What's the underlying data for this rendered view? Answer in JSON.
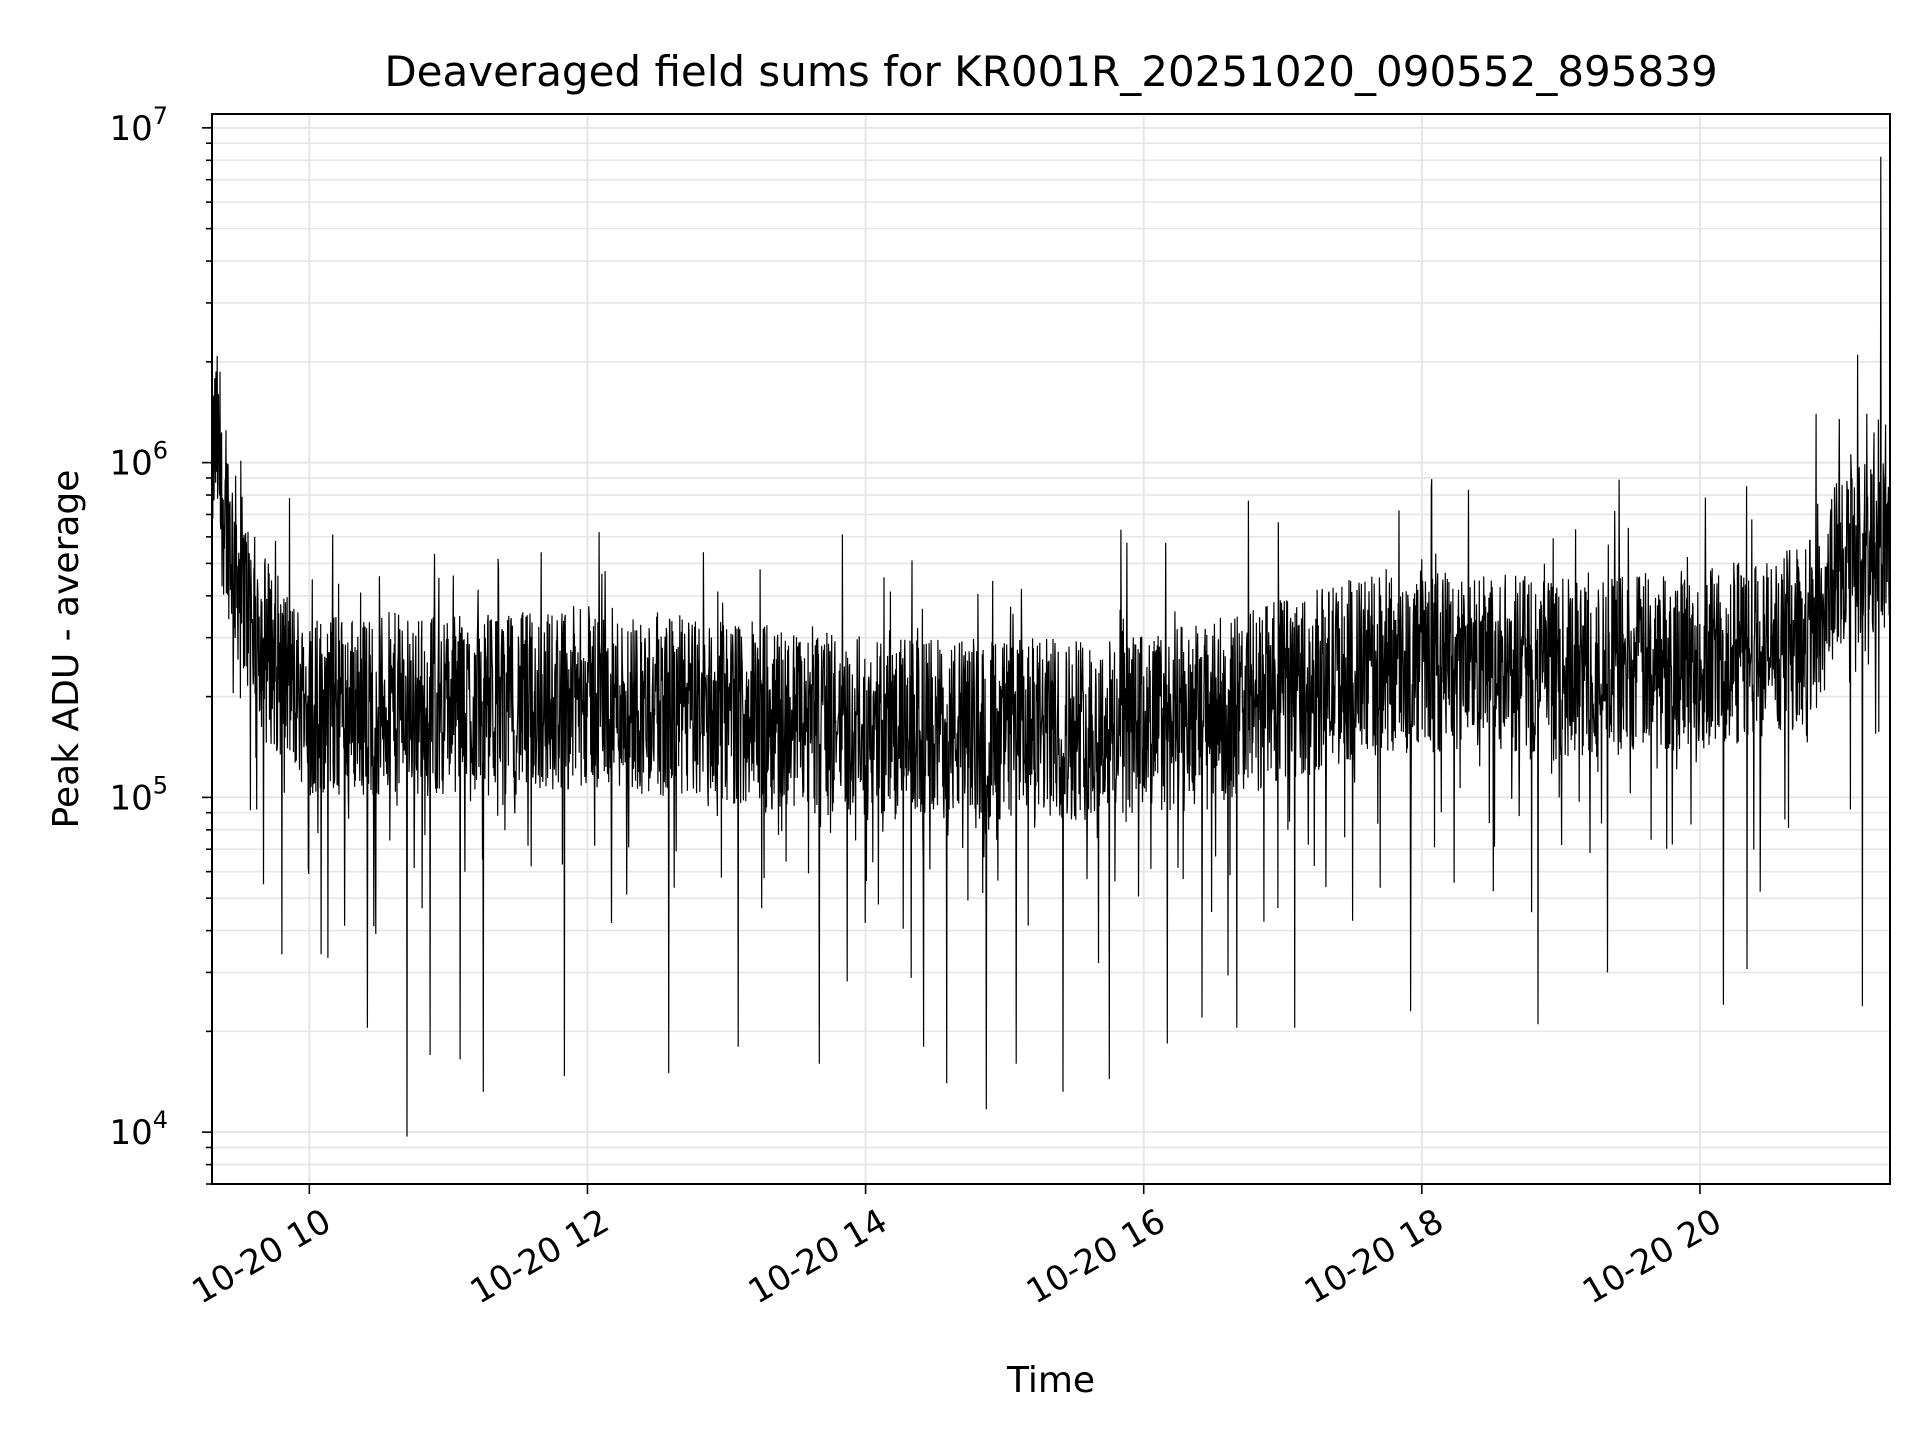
{
  "chart_data": {
    "type": "line",
    "title": "Deaveraged field sums for KR001R_20251020_090552_895839",
    "xlabel": "Time",
    "ylabel": "Peak ADU - average",
    "yscale": "log",
    "grid": true,
    "xlim": [
      "2025-10-20 09:18",
      "2025-10-20 21:22"
    ],
    "ylim": [
      7000,
      11000000
    ],
    "x_ticks": [
      {
        "at": "2025-10-20 10:00",
        "label": "10-20 10"
      },
      {
        "at": "2025-10-20 12:00",
        "label": "10-20 12"
      },
      {
        "at": "2025-10-20 14:00",
        "label": "10-20 14"
      },
      {
        "at": "2025-10-20 16:00",
        "label": "10-20 16"
      },
      {
        "at": "2025-10-20 18:00",
        "label": "10-20 18"
      },
      {
        "at": "2025-10-20 20:00",
        "label": "10-20 20"
      }
    ],
    "y_ticks": [
      {
        "value": 10000,
        "base": "10",
        "exp": "4"
      },
      {
        "value": 100000,
        "base": "10",
        "exp": "5"
      },
      {
        "value": 1000000,
        "base": "10",
        "exp": "6"
      },
      {
        "value": 10000000,
        "base": "10",
        "exp": "7"
      }
    ],
    "line_color": "#000000",
    "series": [
      {
        "points": [
          [
            "2025-10-20 09:18",
            1000000
          ],
          [
            "2025-10-20 09:20",
            1200000
          ],
          [
            "2025-10-20 09:22",
            800000
          ],
          [
            "2025-10-20 09:25",
            650000
          ],
          [
            "2025-10-20 09:28",
            500000
          ],
          [
            "2025-10-20 09:32",
            400000
          ],
          [
            "2025-10-20 09:36",
            330000
          ],
          [
            "2025-10-20 09:42",
            280000
          ],
          [
            "2025-10-20 09:50",
            230000
          ],
          [
            "2025-10-20 10:00",
            190000
          ],
          [
            "2025-10-20 10:30",
            190000
          ],
          [
            "2025-10-20 11:00",
            190000
          ],
          [
            "2025-10-20 11:30",
            190000
          ],
          [
            "2025-10-20 12:00",
            200000
          ],
          [
            "2025-10-20 12:30",
            190000
          ],
          [
            "2025-10-20 13:00",
            180000
          ],
          [
            "2025-10-20 13:30",
            170000
          ],
          [
            "2025-10-20 14:00",
            160000
          ],
          [
            "2025-10-20 14:30",
            160000
          ],
          [
            "2025-10-20 15:00",
            160000
          ],
          [
            "2025-10-20 15:30",
            160000
          ],
          [
            "2025-10-20 16:00",
            165000
          ],
          [
            "2025-10-20 16:30",
            180000
          ],
          [
            "2025-10-20 17:00",
            210000
          ],
          [
            "2025-10-20 17:30",
            240000
          ],
          [
            "2025-10-20 18:00",
            260000
          ],
          [
            "2025-10-20 18:30",
            250000
          ],
          [
            "2025-10-20 19:00",
            240000
          ],
          [
            "2025-10-20 19:30",
            250000
          ],
          [
            "2025-10-20 20:00",
            260000
          ],
          [
            "2025-10-20 20:30",
            280000
          ],
          [
            "2025-10-20 20:50",
            320000
          ],
          [
            "2025-10-20 21:00",
            500000
          ],
          [
            "2025-10-20 21:10",
            550000
          ],
          [
            "2025-10-20 21:22",
            620000
          ]
        ],
        "spikes_high": [
          [
            "2025-10-20 09:19",
            1300000
          ],
          [
            "2025-10-20 09:24",
            1250000
          ],
          [
            "2025-10-20 10:10",
            610000
          ],
          [
            "2025-10-20 11:40",
            540000
          ],
          [
            "2025-10-20 12:05",
            620000
          ],
          [
            "2025-10-20 12:50",
            540000
          ],
          [
            "2025-10-20 13:50",
            610000
          ],
          [
            "2025-10-20 14:20",
            510000
          ],
          [
            "2025-10-20 15:50",
            630000
          ],
          [
            "2025-10-20 16:45",
            770000
          ],
          [
            "2025-10-20 17:50",
            720000
          ],
          [
            "2025-10-20 18:20",
            830000
          ],
          [
            "2025-10-20 19:25",
            890000
          ],
          [
            "2025-10-20 20:20",
            850000
          ],
          [
            "2025-10-20 20:50",
            1400000
          ],
          [
            "2025-10-20 21:00",
            1350000
          ],
          [
            "2025-10-20 21:08",
            2100000
          ],
          [
            "2025-10-20 21:12",
            1400000
          ],
          [
            "2025-10-20 21:18",
            8200000
          ],
          [
            "2025-10-20 21:20",
            1300000
          ]
        ],
        "spikes_low": [
          [
            "2025-10-20 09:48",
            34000
          ],
          [
            "2025-10-20 10:05",
            34000
          ],
          [
            "2025-10-20 10:25",
            20500
          ],
          [
            "2025-10-20 10:42",
            9700
          ],
          [
            "2025-10-20 10:52",
            17000
          ],
          [
            "2025-10-20 11:05",
            16500
          ],
          [
            "2025-10-20 11:15",
            13200
          ],
          [
            "2025-10-20 11:50",
            14700
          ],
          [
            "2025-10-20 12:35",
            15000
          ],
          [
            "2025-10-20 13:05",
            18000
          ],
          [
            "2025-10-20 13:40",
            16000
          ],
          [
            "2025-10-20 14:25",
            18000
          ],
          [
            "2025-10-20 14:35",
            14000
          ],
          [
            "2025-10-20 14:52",
            11700
          ],
          [
            "2025-10-20 15:05",
            16000
          ],
          [
            "2025-10-20 15:25",
            13200
          ],
          [
            "2025-10-20 15:45",
            14400
          ],
          [
            "2025-10-20 16:10",
            18400
          ],
          [
            "2025-10-20 16:25",
            22000
          ],
          [
            "2025-10-20 16:40",
            20500
          ],
          [
            "2025-10-20 17:05",
            20500
          ],
          [
            "2025-10-20 17:55",
            23000
          ],
          [
            "2025-10-20 18:50",
            21000
          ],
          [
            "2025-10-20 19:20",
            30000
          ],
          [
            "2025-10-20 20:10",
            24000
          ],
          [
            "2025-10-20 20:20",
            30700
          ],
          [
            "2025-10-20 21:10",
            23800
          ]
        ]
      }
    ]
  }
}
